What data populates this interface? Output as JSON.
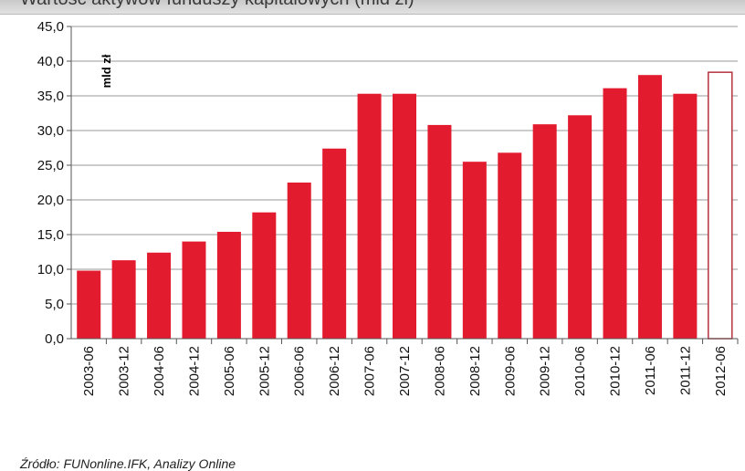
{
  "chart_data": {
    "type": "bar",
    "title": "Wartość aktywów funduszy kapitałowych (mld zł)",
    "ylabel": "mld zł",
    "xlabel": "",
    "ylim": [
      0,
      45
    ],
    "yticks": [
      "0,0",
      "5,0",
      "10,0",
      "15,0",
      "20,0",
      "25,0",
      "30,0",
      "35,0",
      "40,0",
      "45,0"
    ],
    "grid": true,
    "categories": [
      "2003-06",
      "2003-12",
      "2004-06",
      "2004-12",
      "2005-06",
      "2005-12",
      "2006-06",
      "2006-12",
      "2007-06",
      "2007-12",
      "2008-06",
      "2008-12",
      "2009-06",
      "2009-12",
      "2010-06",
      "2010-12",
      "2011-06",
      "2011-12",
      "2012-06"
    ],
    "values": [
      9.8,
      11.3,
      12.4,
      14.0,
      15.4,
      18.2,
      22.5,
      27.4,
      35.3,
      35.3,
      30.8,
      25.5,
      26.8,
      30.9,
      32.2,
      36.1,
      38.0,
      35.3,
      38.4
    ],
    "bar_color": "#e31b2f",
    "forecast_categories": [
      "2012-06"
    ],
    "source_note": "Źródło: FUNonline.IFK, Analizy Online"
  }
}
